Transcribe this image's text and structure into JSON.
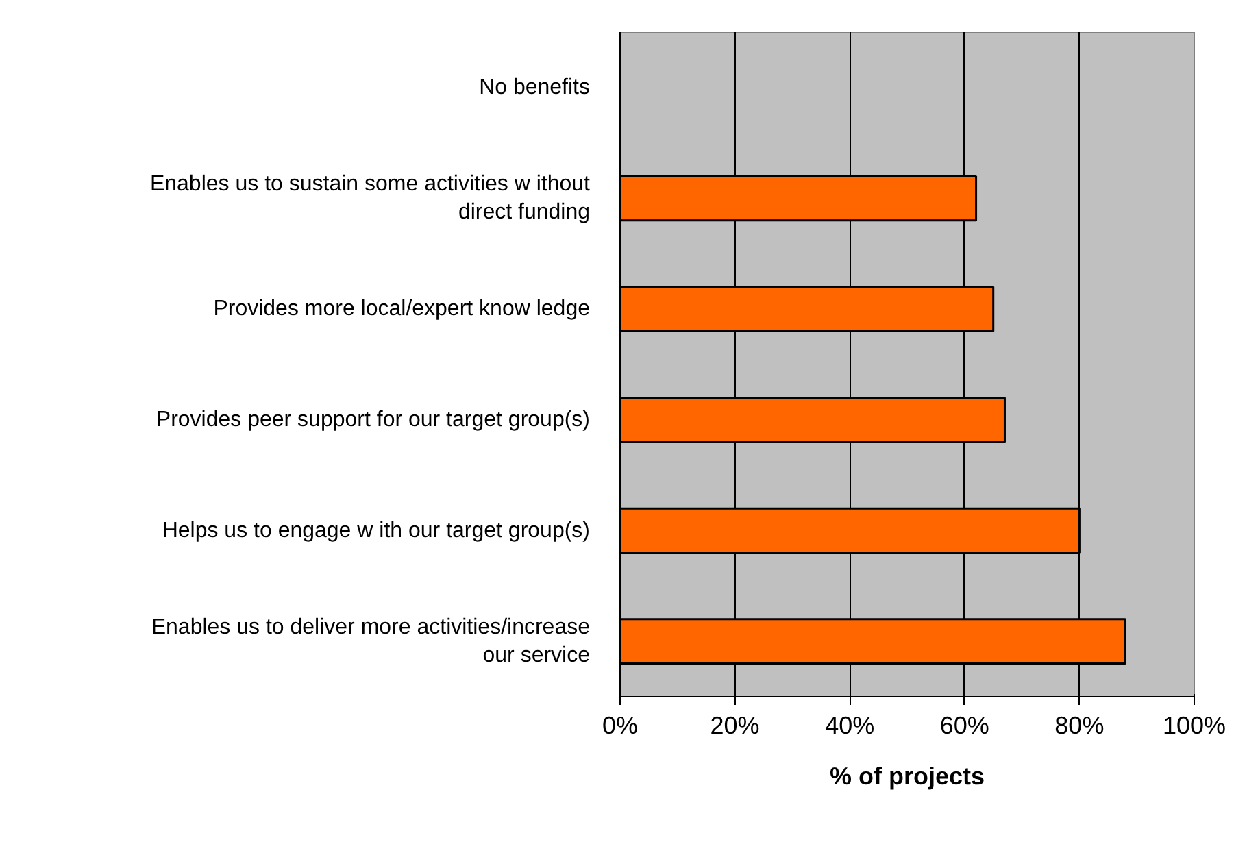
{
  "chart_data": {
    "type": "bar",
    "orientation": "horizontal",
    "categories": [
      "No benefits",
      "Enables us to sustain some activities w ithout direct funding",
      "Provides more local/expert know ledge",
      "Provides peer support for our target group(s)",
      "Helps us to engage w ith our target group(s)",
      "Enables us to deliver more activities/increase our service"
    ],
    "values": [
      0,
      62,
      65,
      67,
      80,
      88
    ],
    "color": "#ff6600",
    "xlim": [
      0,
      100
    ],
    "xticks": [
      {
        "value": 0,
        "label": "0%"
      },
      {
        "value": 20,
        "label": "20%"
      },
      {
        "value": 40,
        "label": "40%"
      },
      {
        "value": 60,
        "label": "60%"
      },
      {
        "value": 80,
        "label": "80%"
      },
      {
        "value": 100,
        "label": "100%"
      }
    ],
    "xlabel": "% of projects",
    "grid": "x"
  }
}
